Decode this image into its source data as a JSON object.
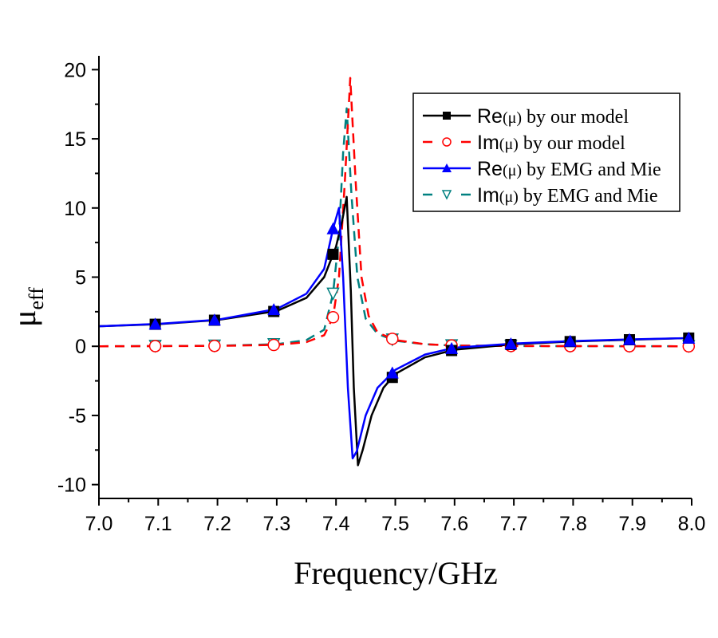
{
  "chart_data": {
    "type": "line",
    "title": "",
    "xlabel": "Frequency/GHz",
    "ylabel": "μ",
    "ylabel_sub": "eff",
    "xlim": [
      7.0,
      8.0
    ],
    "ylim": [
      -11,
      21
    ],
    "xticks": [
      "7.0",
      "7.1",
      "7.2",
      "7.3",
      "7.4",
      "7.5",
      "7.6",
      "7.7",
      "7.8",
      "7.9",
      "8.0"
    ],
    "yticks": [
      "-10",
      "-5",
      "0",
      "5",
      "10",
      "15",
      "20"
    ],
    "legend_position": "top-right",
    "marker_x": [
      7.095,
      7.195,
      7.295,
      7.395,
      7.495,
      7.595,
      7.695,
      7.795,
      7.895,
      7.995
    ],
    "series": [
      {
        "name": "Re(μ) by our model",
        "legend_prefix": "Re",
        "legend_mu": "(μ)",
        "legend_rest": " by our model",
        "color": "#000000",
        "dash": "solid",
        "marker": "square",
        "x": [
          7.0,
          7.1,
          7.2,
          7.3,
          7.35,
          7.38,
          7.4,
          7.41,
          7.418,
          7.425,
          7.43,
          7.437,
          7.445,
          7.46,
          7.48,
          7.5,
          7.55,
          7.6,
          7.7,
          7.8,
          7.9,
          8.0
        ],
        "y": [
          1.45,
          1.6,
          1.9,
          2.55,
          3.5,
          5.0,
          7.2,
          9.0,
          10.8,
          4.0,
          -3.0,
          -8.6,
          -7.5,
          -5.0,
          -3.0,
          -2.0,
          -0.8,
          -0.25,
          0.15,
          0.35,
          0.48,
          0.6
        ]
      },
      {
        "name": "Im(μ)  by our model",
        "legend_prefix": "Im",
        "legend_mu": "(μ)",
        "legend_rest": "  by our model",
        "color": "#ff0000",
        "dash": "dashed",
        "marker": "circle-open",
        "x": [
          7.0,
          7.2,
          7.3,
          7.35,
          7.38,
          7.395,
          7.405,
          7.415,
          7.424,
          7.433,
          7.443,
          7.455,
          7.47,
          7.5,
          7.55,
          7.6,
          7.7,
          8.0
        ],
        "y": [
          0,
          0.03,
          0.1,
          0.3,
          0.8,
          2.1,
          5.0,
          12.0,
          19.4,
          12.0,
          5.0,
          2.2,
          1.0,
          0.45,
          0.15,
          0.05,
          0.02,
          0
        ]
      },
      {
        "name": "Re(μ) by EMG and Mie",
        "legend_prefix": "Re",
        "legend_mu": "(μ)",
        "legend_rest": " by EMG and Mie",
        "color": "#0000ff",
        "dash": "solid",
        "marker": "triangle-up",
        "x": [
          7.0,
          7.1,
          7.2,
          7.3,
          7.35,
          7.38,
          7.395,
          7.405,
          7.412,
          7.42,
          7.428,
          7.435,
          7.45,
          7.47,
          7.5,
          7.55,
          7.6,
          7.7,
          7.8,
          7.9,
          8.0
        ],
        "y": [
          1.45,
          1.62,
          1.92,
          2.7,
          3.8,
          5.6,
          8.5,
          10.0,
          5.0,
          -3.0,
          -8.1,
          -7.6,
          -5.0,
          -3.0,
          -1.7,
          -0.6,
          -0.1,
          0.2,
          0.38,
          0.5,
          0.6
        ]
      },
      {
        "name": "Im(μ) by EMG and Mie",
        "legend_prefix": "Im",
        "legend_mu": "(μ)",
        "legend_rest": " by EMG and Mie",
        "color": "#008080",
        "dash": "dashed",
        "marker": "triangle-down-open",
        "x": [
          7.0,
          7.2,
          7.3,
          7.35,
          7.38,
          7.395,
          7.405,
          7.412,
          7.418,
          7.426,
          7.436,
          7.45,
          7.47,
          7.5,
          7.55,
          7.6,
          7.7,
          8.0
        ],
        "y": [
          0,
          0.04,
          0.15,
          0.45,
          1.2,
          3.8,
          8.0,
          14.0,
          17.2,
          11.0,
          5.0,
          2.0,
          0.9,
          0.4,
          0.15,
          0.05,
          0.02,
          0
        ]
      }
    ]
  }
}
